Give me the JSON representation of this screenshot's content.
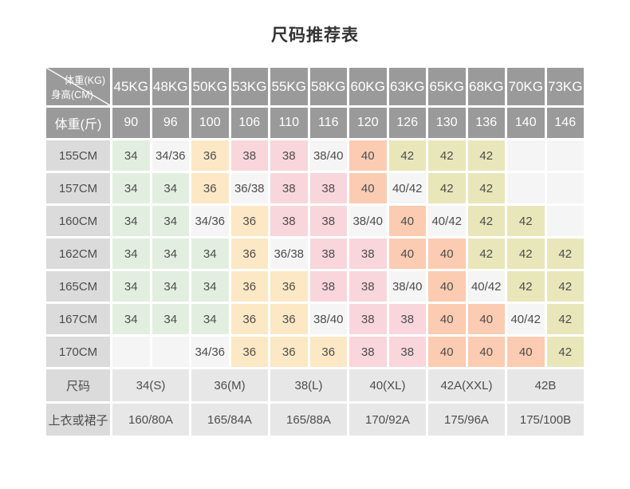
{
  "title": "尺码推荐表",
  "palette": {
    "g": "#e2efe0",
    "n": "#f5f5f5",
    "o": "#fce8c5",
    "p": "#f8d6dc",
    "s": "#fbccb1",
    "k": "#e9e6ba",
    "header_bg": "#9a9a9a",
    "header_text": "#ffffff",
    "row_label_bg": "#dbdbdb",
    "footer_value_bg": "#e7e7e7",
    "cell_text": "#4d4d4d",
    "title_text": "#333333"
  },
  "chart_data": {
    "type": "table",
    "title": "尺码推荐表",
    "corner": {
      "top_right": "体重(KG)",
      "bottom_left": "身高(CM)"
    },
    "weight_kg": [
      "45KG",
      "48KG",
      "50KG",
      "53KG",
      "55KG",
      "58KG",
      "60KG",
      "63KG",
      "65KG",
      "68KG",
      "70KG",
      "73KG"
    ],
    "weight_jin_label": "体重(斤)",
    "weight_jin": [
      "90",
      "96",
      "100",
      "106",
      "110",
      "116",
      "120",
      "126",
      "130",
      "136",
      "140",
      "146"
    ],
    "height_rows": [
      {
        "label": "155CM",
        "cells": [
          [
            "34",
            "g"
          ],
          [
            "34/36",
            "n"
          ],
          [
            "36",
            "o"
          ],
          [
            "38",
            "p"
          ],
          [
            "38",
            "p"
          ],
          [
            "38/40",
            "n"
          ],
          [
            "40",
            "s"
          ],
          [
            "42",
            "k"
          ],
          [
            "42",
            "k"
          ],
          [
            "42",
            "k"
          ],
          [
            "",
            "n"
          ],
          [
            "",
            "n"
          ]
        ]
      },
      {
        "label": "157CM",
        "cells": [
          [
            "34",
            "g"
          ],
          [
            "34",
            "g"
          ],
          [
            "36",
            "o"
          ],
          [
            "36/38",
            "n"
          ],
          [
            "38",
            "p"
          ],
          [
            "38",
            "p"
          ],
          [
            "40",
            "s"
          ],
          [
            "40/42",
            "n"
          ],
          [
            "42",
            "k"
          ],
          [
            "42",
            "k"
          ],
          [
            "",
            "n"
          ],
          [
            "",
            "n"
          ]
        ]
      },
      {
        "label": "160CM",
        "cells": [
          [
            "34",
            "g"
          ],
          [
            "34",
            "g"
          ],
          [
            "34/36",
            "n"
          ],
          [
            "36",
            "o"
          ],
          [
            "38",
            "p"
          ],
          [
            "38",
            "p"
          ],
          [
            "38/40",
            "n"
          ],
          [
            "40",
            "s"
          ],
          [
            "40/42",
            "n"
          ],
          [
            "42",
            "k"
          ],
          [
            "42",
            "k"
          ],
          [
            "",
            "n"
          ]
        ]
      },
      {
        "label": "162CM",
        "cells": [
          [
            "34",
            "g"
          ],
          [
            "34",
            "g"
          ],
          [
            "34",
            "g"
          ],
          [
            "36",
            "o"
          ],
          [
            "36/38",
            "n"
          ],
          [
            "38",
            "p"
          ],
          [
            "38",
            "p"
          ],
          [
            "40",
            "s"
          ],
          [
            "40",
            "s"
          ],
          [
            "42",
            "k"
          ],
          [
            "42",
            "k"
          ],
          [
            "42",
            "k"
          ]
        ]
      },
      {
        "label": "165CM",
        "cells": [
          [
            "34",
            "g"
          ],
          [
            "34",
            "g"
          ],
          [
            "34",
            "g"
          ],
          [
            "36",
            "o"
          ],
          [
            "36",
            "o"
          ],
          [
            "38",
            "p"
          ],
          [
            "38",
            "p"
          ],
          [
            "38/40",
            "n"
          ],
          [
            "40",
            "s"
          ],
          [
            "40/42",
            "n"
          ],
          [
            "42",
            "k"
          ],
          [
            "42",
            "k"
          ]
        ]
      },
      {
        "label": "167CM",
        "cells": [
          [
            "34",
            "g"
          ],
          [
            "34",
            "g"
          ],
          [
            "34",
            "g"
          ],
          [
            "36",
            "o"
          ],
          [
            "36",
            "o"
          ],
          [
            "38/40",
            "n"
          ],
          [
            "38",
            "p"
          ],
          [
            "38",
            "p"
          ],
          [
            "40",
            "s"
          ],
          [
            "40",
            "s"
          ],
          [
            "40/42",
            "n"
          ],
          [
            "42",
            "k"
          ]
        ]
      },
      {
        "label": "170CM",
        "cells": [
          [
            "",
            "n"
          ],
          [
            "",
            "n"
          ],
          [
            "34/36",
            "n"
          ],
          [
            "36",
            "o"
          ],
          [
            "36",
            "o"
          ],
          [
            "36",
            "o"
          ],
          [
            "38",
            "p"
          ],
          [
            "38",
            "p"
          ],
          [
            "40",
            "s"
          ],
          [
            "40",
            "s"
          ],
          [
            "40",
            "s"
          ],
          [
            "42",
            "k"
          ]
        ]
      }
    ],
    "footer_rows": [
      {
        "label": "尺码",
        "values": [
          "34(S)",
          "36(M)",
          "38(L)",
          "40(XL)",
          "42A(XXL)",
          "42B"
        ]
      },
      {
        "label": "上衣或裙子",
        "values": [
          "160/80A",
          "165/84A",
          "165/88A",
          "170/92A",
          "175/96A",
          "175/100B"
        ]
      }
    ]
  }
}
